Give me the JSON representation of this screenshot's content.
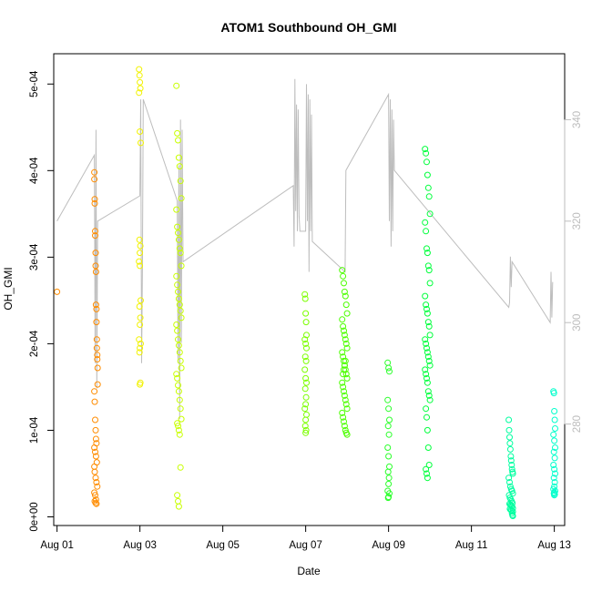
{
  "chart_data": {
    "type": "scatter",
    "title": "ATOM1 Southbound OH_GMI",
    "xlabel": "Date",
    "ylabel": "OH_GMI",
    "xlim": [
      -0.08,
      12.25
    ],
    "ylim": [
      -1e-05,
      0.000535
    ],
    "y2lim": [
      260,
      353
    ],
    "x_ticks": [
      {
        "value": 0,
        "label": "Aug 01"
      },
      {
        "value": 2,
        "label": "Aug 03"
      },
      {
        "value": 4,
        "label": "Aug 05"
      },
      {
        "value": 6,
        "label": "Aug 07"
      },
      {
        "value": 8,
        "label": "Aug 09"
      },
      {
        "value": 10,
        "label": "Aug 11"
      },
      {
        "value": 12,
        "label": "Aug 13"
      }
    ],
    "y_ticks": [
      {
        "value": 0,
        "label": "0e+00"
      },
      {
        "value": 0.0001,
        "label": "1e-04"
      },
      {
        "value": 0.0002,
        "label": "2e-04"
      },
      {
        "value": 0.0003,
        "label": "3e-04"
      },
      {
        "value": 0.0004,
        "label": "4e-04"
      },
      {
        "value": 0.0005,
        "label": "5e-04"
      }
    ],
    "y2_ticks": [
      {
        "value": 280,
        "label": "280"
      },
      {
        "value": 300,
        "label": "300"
      },
      {
        "value": 320,
        "label": "320"
      },
      {
        "value": 340,
        "label": "340"
      }
    ],
    "grid": false,
    "secondary_line_color": "#bdbdbd",
    "flight_track": [
      [
        0.0,
        320.0
      ],
      [
        0.9,
        333.0
      ],
      [
        0.92,
        292.0
      ],
      [
        0.94,
        338.0
      ],
      [
        0.96,
        287.0
      ],
      [
        0.98,
        320.0
      ],
      [
        2.0,
        325.0
      ],
      [
        2.02,
        344.0
      ],
      [
        2.04,
        292.0
      ],
      [
        2.06,
        311.0
      ],
      [
        2.08,
        344.0
      ],
      [
        2.9,
        324.0
      ],
      [
        2.92,
        292.0
      ],
      [
        2.94,
        331.0
      ],
      [
        2.96,
        281.0
      ],
      [
        2.98,
        340.0
      ],
      [
        3.0,
        296.0
      ],
      [
        3.02,
        338.0
      ],
      [
        3.04,
        312.0
      ],
      [
        5.7,
        327.0
      ],
      [
        5.72,
        315.0
      ],
      [
        5.74,
        348.0
      ],
      [
        5.76,
        322.0
      ],
      [
        5.78,
        343.0
      ],
      [
        5.8,
        318.0
      ],
      [
        5.82,
        342.0
      ],
      [
        5.84,
        321.0
      ],
      [
        5.86,
        318.0
      ],
      [
        6.0,
        318.0
      ],
      [
        6.02,
        347.0
      ],
      [
        6.04,
        320.0
      ],
      [
        6.06,
        345.0
      ],
      [
        6.08,
        310.0
      ],
      [
        6.1,
        344.0
      ],
      [
        6.12,
        318.0
      ],
      [
        6.14,
        341.0
      ],
      [
        6.16,
        316.0
      ],
      [
        6.95,
        310.0
      ],
      [
        6.97,
        330.0
      ],
      [
        8.0,
        345.0
      ],
      [
        8.02,
        320.0
      ],
      [
        8.04,
        344.0
      ],
      [
        8.06,
        315.0
      ],
      [
        8.08,
        342.0
      ],
      [
        8.1,
        318.0
      ],
      [
        8.12,
        340.0
      ],
      [
        8.14,
        330.0
      ],
      [
        10.9,
        303.0
      ],
      [
        10.92,
        304.0
      ],
      [
        10.94,
        313.0
      ],
      [
        10.96,
        307.0
      ],
      [
        10.98,
        312.0
      ],
      [
        11.9,
        300.0
      ],
      [
        11.92,
        310.0
      ],
      [
        11.94,
        301.0
      ],
      [
        11.96,
        308.0
      ]
    ],
    "series": [
      {
        "color": "#ff8c00",
        "x": [
          0.0,
          0.9,
          0.9,
          0.91,
          0.91,
          0.92,
          0.92,
          0.93,
          0.93,
          0.94,
          0.94,
          0.95,
          0.95,
          0.96,
          0.96,
          0.97,
          0.97,
          0.98,
          0.98,
          0.9,
          0.91,
          0.92,
          0.93,
          0.94,
          0.95,
          0.9,
          0.92,
          0.94,
          0.96,
          0.9,
          0.91,
          0.93,
          0.95,
          0.97,
          0.9,
          0.92,
          0.94,
          0.91,
          0.93,
          0.95
        ],
        "y": [
          0.00026,
          0.000398,
          0.00039,
          0.000367,
          0.000362,
          0.00033,
          0.000325,
          0.000305,
          0.00029,
          0.000283,
          0.000245,
          0.00024,
          0.000225,
          0.000205,
          0.000195,
          0.000187,
          0.000182,
          0.000172,
          0.000153,
          0.000145,
          0.000133,
          0.000112,
          0.0001,
          9e-05,
          8.5e-05,
          8e-05,
          7.5e-05,
          7e-05,
          6.3e-05,
          5.8e-05,
          5.2e-05,
          4.5e-05,
          4e-05,
          3.5e-05,
          2.8e-05,
          2.5e-05,
          2e-05,
          1.8e-05,
          1.6e-05,
          1.5e-05
        ]
      },
      {
        "color": "#f2f200",
        "x": [
          1.98,
          1.99,
          2.0,
          2.01,
          1.98,
          2.0,
          2.02,
          1.99,
          2.01,
          2.0,
          1.98,
          2.0,
          2.02,
          1.99,
          2.01,
          2.0,
          1.98,
          2.02,
          2.0,
          1.99,
          2.01,
          2.0
        ],
        "y": [
          0.000517,
          0.00051,
          0.000502,
          0.000495,
          0.00049,
          0.000445,
          0.000432,
          0.00032,
          0.000313,
          0.000305,
          0.000295,
          0.00029,
          0.00025,
          0.000243,
          0.00023,
          0.000222,
          0.000205,
          0.0002,
          0.000195,
          0.00019,
          0.000155,
          0.000153
        ]
      },
      {
        "color": "#c8ff00",
        "x": [
          2.88,
          2.9,
          2.92,
          2.94,
          2.96,
          2.98,
          3.0,
          2.88,
          2.9,
          2.92,
          2.94,
          2.96,
          2.98,
          3.0,
          2.88,
          2.9,
          2.92,
          2.94,
          2.96,
          2.98,
          3.0,
          2.88,
          2.9,
          2.92,
          2.94,
          2.96,
          2.98,
          3.0,
          2.88,
          2.9,
          2.92,
          2.94,
          2.96,
          2.98,
          3.0,
          2.9,
          2.92,
          2.94,
          2.96,
          2.98,
          2.9,
          2.92,
          2.94
        ],
        "y": [
          0.000498,
          0.000443,
          0.000435,
          0.000415,
          0.000405,
          0.000388,
          0.000368,
          0.000355,
          0.000335,
          0.000328,
          0.00032,
          0.00031,
          0.000305,
          0.00029,
          0.000278,
          0.000268,
          0.00026,
          0.000252,
          0.000245,
          0.000238,
          0.00023,
          0.000222,
          0.000215,
          0.000205,
          0.000198,
          0.00019,
          0.00018,
          0.000172,
          0.000165,
          0.00016,
          0.000152,
          0.000145,
          0.000135,
          0.000125,
          0.000113,
          0.000108,
          0.000105,
          0.0001,
          9.5e-05,
          5.7e-05,
          2.5e-05,
          1.8e-05,
          1.2e-05
        ]
      },
      {
        "color": "#7cff00",
        "x": [
          5.98,
          5.99,
          6.0,
          6.01,
          6.02,
          5.98,
          6.0,
          6.02,
          5.99,
          6.01,
          5.98,
          6.0,
          6.02,
          5.99,
          6.01,
          6.0,
          5.98,
          6.02,
          6.0,
          5.99,
          6.01,
          6.0
        ],
        "y": [
          0.000257,
          0.000252,
          0.000235,
          0.000225,
          0.00021,
          0.000205,
          0.0002,
          0.000195,
          0.000185,
          0.00018,
          0.00017,
          0.00016,
          0.000155,
          0.000148,
          0.000138,
          0.00013,
          0.000125,
          0.000118,
          0.000112,
          0.000105,
          0.0001,
          9.7e-05
        ]
      },
      {
        "color": "#4cff00",
        "x": [
          6.88,
          6.9,
          6.92,
          6.94,
          6.96,
          6.98,
          7.0,
          6.88,
          6.9,
          6.92,
          6.94,
          6.96,
          6.98,
          7.0,
          6.88,
          6.9,
          6.92,
          6.94,
          6.96,
          6.98,
          7.0,
          6.88,
          6.9,
          6.92,
          6.94,
          6.96,
          6.98,
          7.0,
          6.88,
          6.9,
          6.92,
          6.94,
          6.96,
          6.98,
          7.0,
          6.9,
          6.92,
          6.94,
          6.96
        ],
        "y": [
          0.000285,
          0.000278,
          0.00027,
          0.00026,
          0.000255,
          0.000245,
          0.000235,
          0.000228,
          0.00022,
          0.000215,
          0.00021,
          0.000205,
          0.0002,
          0.000195,
          0.00019,
          0.000185,
          0.00018,
          0.000175,
          0.00017,
          0.000165,
          0.00016,
          0.000155,
          0.00015,
          0.000145,
          0.00014,
          0.000135,
          0.00013,
          0.000125,
          0.00012,
          0.000115,
          0.00011,
          0.000105,
          0.0001,
          9.7e-05,
          9.5e-05,
          0.000165,
          0.00017,
          0.000175,
          0.00018
        ]
      },
      {
        "color": "#2bff2b",
        "x": [
          7.98,
          8.0,
          8.02,
          7.98,
          8.0,
          8.02,
          7.99,
          8.01,
          7.98,
          8.0,
          8.02,
          7.99,
          8.01,
          8.0,
          7.98,
          8.02,
          8.0,
          7.99
        ],
        "y": [
          0.000178,
          0.000172,
          0.000168,
          0.000135,
          0.000125,
          0.000112,
          0.000105,
          9.5e-05,
          8e-05,
          7e-05,
          5.8e-05,
          5.2e-05,
          4.5e-05,
          3.8e-05,
          3e-05,
          2.7e-05,
          2.3e-05,
          2.2e-05
        ]
      },
      {
        "color": "#00ff3c",
        "x": [
          8.88,
          8.9,
          8.92,
          8.94,
          8.96,
          8.98,
          9.0,
          8.88,
          8.9,
          8.92,
          8.94,
          8.96,
          8.98,
          9.0,
          8.88,
          8.9,
          8.92,
          8.94,
          8.96,
          8.98,
          9.0,
          8.88,
          8.9,
          8.92,
          8.94,
          8.96,
          8.98,
          9.0,
          8.88,
          8.9,
          8.92,
          8.94,
          8.96,
          8.98,
          9.0,
          8.9,
          8.92,
          8.94,
          8.96,
          8.98,
          8.9,
          8.92,
          8.94
        ],
        "y": [
          0.000425,
          0.00042,
          0.00041,
          0.000395,
          0.00038,
          0.00037,
          0.00035,
          0.00034,
          0.00033,
          0.00031,
          0.000305,
          0.00029,
          0.000285,
          0.00027,
          0.000255,
          0.000245,
          0.00024,
          0.000235,
          0.000225,
          0.00022,
          0.00021,
          0.000205,
          0.0002,
          0.000195,
          0.00019,
          0.000185,
          0.00018,
          0.000175,
          0.00017,
          0.000165,
          0.00016,
          0.000155,
          0.000145,
          0.00014,
          0.000135,
          0.000125,
          0.000115,
          0.0001,
          8e-05,
          6e-05,
          5.5e-05,
          5e-05,
          4.5e-05
        ]
      },
      {
        "color": "#00ffa0",
        "x": [
          10.9,
          10.91,
          10.92,
          10.93,
          10.94,
          10.95,
          10.96,
          10.97,
          10.98,
          10.99,
          11.0,
          10.9,
          10.92,
          10.94,
          10.96,
          10.98,
          11.0,
          10.91,
          10.93,
          10.95,
          10.97,
          10.99,
          10.92,
          10.94,
          10.96,
          10.98,
          11.0,
          10.93,
          10.95,
          10.97,
          11.0,
          10.98,
          10.99,
          11.0
        ],
        "y": [
          0.000112,
          0.0001,
          9.2e-05,
          8.5e-05,
          7.8e-05,
          7e-05,
          6.5e-05,
          6e-05,
          5.5e-05,
          5.2e-05,
          5e-05,
          4.5e-05,
          4e-05,
          3.5e-05,
          3.2e-05,
          3e-05,
          2.7e-05,
          2.5e-05,
          2.2e-05,
          2e-05,
          1.8e-05,
          1.6e-05,
          1.5e-05,
          1.4e-05,
          1.3e-05,
          1.2e-05,
          1e-05,
          9e-06,
          8e-06,
          7e-06,
          6e-06,
          4e-06,
          2e-06,
          1e-06
        ]
      },
      {
        "color": "#00ffcc",
        "x": [
          11.98,
          11.99,
          12.0,
          12.01,
          12.02,
          11.98,
          12.0,
          12.02,
          11.99,
          12.01,
          11.98,
          12.0,
          12.02,
          11.99,
          12.01,
          12.0,
          11.98,
          12.02,
          12.0,
          11.99,
          12.01,
          12.0
        ],
        "y": [
          0.000145,
          0.000143,
          0.000122,
          0.000112,
          0.000102,
          9.5e-05,
          8.8e-05,
          8e-05,
          7.5e-05,
          6.8e-05,
          6e-05,
          5.5e-05,
          5e-05,
          4.5e-05,
          4e-05,
          3.5e-05,
          3.2e-05,
          3e-05,
          2.8e-05,
          2.7e-05,
          2.6e-05,
          2.5e-05
        ]
      }
    ]
  }
}
